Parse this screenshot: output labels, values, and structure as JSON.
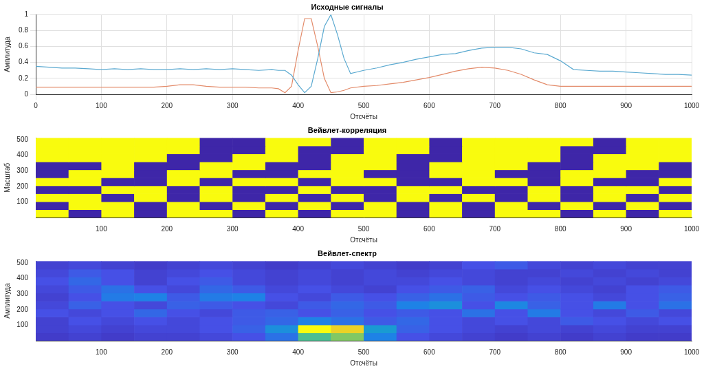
{
  "chart_data": [
    {
      "type": "line",
      "title": "Исходные сигналы",
      "x_label": "Отсчёты",
      "y_label": "Амплитуда",
      "x": [
        0,
        20,
        40,
        60,
        80,
        100,
        120,
        140,
        160,
        180,
        200,
        220,
        240,
        260,
        280,
        300,
        320,
        340,
        360,
        370,
        380,
        390,
        400,
        410,
        420,
        430,
        440,
        450,
        460,
        470,
        480,
        500,
        520,
        540,
        560,
        580,
        600,
        620,
        640,
        660,
        680,
        700,
        720,
        740,
        760,
        780,
        800,
        820,
        840,
        860,
        880,
        900,
        920,
        940,
        960,
        980,
        1000
      ],
      "series": [
        {
          "color": "#5aa9d0",
          "values": [
            0.35,
            0.34,
            0.33,
            0.33,
            0.32,
            0.31,
            0.32,
            0.31,
            0.32,
            0.31,
            0.31,
            0.32,
            0.31,
            0.32,
            0.31,
            0.32,
            0.31,
            0.3,
            0.31,
            0.3,
            0.3,
            0.24,
            0.12,
            0.02,
            0.1,
            0.45,
            0.85,
            1.0,
            0.75,
            0.45,
            0.26,
            0.3,
            0.33,
            0.37,
            0.4,
            0.44,
            0.47,
            0.5,
            0.51,
            0.55,
            0.58,
            0.59,
            0.59,
            0.57,
            0.52,
            0.5,
            0.42,
            0.31,
            0.3,
            0.29,
            0.29,
            0.28,
            0.27,
            0.26,
            0.25,
            0.25,
            0.24
          ]
        },
        {
          "color": "#e38b6a",
          "values": [
            0.09,
            0.09,
            0.09,
            0.09,
            0.09,
            0.09,
            0.09,
            0.09,
            0.09,
            0.09,
            0.1,
            0.12,
            0.12,
            0.1,
            0.09,
            0.09,
            0.09,
            0.08,
            0.08,
            0.07,
            0.02,
            0.1,
            0.55,
            0.95,
            0.95,
            0.6,
            0.2,
            0.02,
            0.03,
            0.05,
            0.08,
            0.1,
            0.11,
            0.13,
            0.15,
            0.18,
            0.21,
            0.25,
            0.29,
            0.32,
            0.34,
            0.33,
            0.3,
            0.25,
            0.18,
            0.12,
            0.1,
            0.1,
            0.1,
            0.1,
            0.1,
            0.1,
            0.1,
            0.1,
            0.1,
            0.1,
            0.1
          ]
        }
      ],
      "xlim": [
        0,
        1000
      ],
      "xticks": [
        0,
        100,
        200,
        300,
        400,
        500,
        600,
        700,
        800,
        900,
        1000
      ],
      "ylim": [
        0,
        1
      ],
      "yticks": [
        0,
        0.2,
        0.4,
        0.6,
        0.8,
        1
      ],
      "grid": true
    },
    {
      "type": "heatmap",
      "title": "Вейвлет-корреляция",
      "x_label": "Отсчёты",
      "y_label": "Масштаб",
      "x": [
        25,
        75,
        125,
        175,
        225,
        275,
        325,
        375,
        425,
        475,
        525,
        575,
        625,
        675,
        725,
        775,
        825,
        875,
        925,
        975
      ],
      "y": [
        25.6,
        76.8,
        128,
        179.2,
        230.4,
        281.6,
        332.8,
        384,
        435.2,
        486.4
      ],
      "cells": [
        [
          1,
          0,
          1,
          0,
          1,
          1,
          0,
          1,
          0,
          1,
          1,
          0,
          1,
          0,
          1,
          1,
          0,
          1,
          0,
          1
        ],
        [
          0,
          1,
          1,
          0,
          1,
          0,
          1,
          0,
          1,
          0,
          1,
          0,
          1,
          0,
          1,
          0,
          1,
          0,
          1,
          0
        ],
        [
          1,
          1,
          0,
          1,
          0,
          1,
          0,
          1,
          0,
          1,
          0,
          1,
          0,
          1,
          0,
          1,
          0,
          1,
          0,
          1
        ],
        [
          0,
          0,
          1,
          1,
          0,
          1,
          0,
          0,
          1,
          0,
          0,
          1,
          1,
          0,
          0,
          1,
          0,
          1,
          1,
          0
        ],
        [
          1,
          1,
          0,
          0,
          1,
          0,
          1,
          1,
          0,
          1,
          1,
          0,
          0,
          1,
          1,
          0,
          1,
          0,
          0,
          1
        ],
        [
          0,
          1,
          1,
          0,
          1,
          1,
          0,
          0,
          1,
          1,
          0,
          0,
          1,
          1,
          0,
          0,
          1,
          1,
          0,
          0
        ],
        [
          0,
          0,
          1,
          0,
          0,
          1,
          1,
          0,
          0,
          1,
          1,
          0,
          1,
          1,
          1,
          0,
          0,
          1,
          1,
          0
        ],
        [
          1,
          1,
          1,
          1,
          0,
          0,
          1,
          1,
          0,
          1,
          1,
          0,
          0,
          1,
          1,
          1,
          0,
          1,
          1,
          1
        ],
        [
          1,
          1,
          1,
          1,
          1,
          0,
          0,
          1,
          0,
          0,
          1,
          1,
          0,
          1,
          1,
          1,
          0,
          0,
          1,
          1
        ],
        [
          1,
          1,
          1,
          1,
          1,
          0,
          0,
          1,
          1,
          0,
          1,
          1,
          0,
          1,
          1,
          1,
          1,
          0,
          1,
          1
        ]
      ],
      "xlim": [
        0,
        1000
      ],
      "xticks": [
        100,
        200,
        300,
        400,
        500,
        600,
        700,
        800,
        900,
        1000
      ],
      "ylim": [
        0,
        512
      ],
      "yticks": [
        100,
        200,
        300,
        400,
        500
      ],
      "grid": false
    },
    {
      "type": "heatmap",
      "title": "Вейвлет-спектр",
      "x_label": "Отсчёты",
      "y_label": "Амплитуда",
      "x": [
        25,
        75,
        125,
        175,
        225,
        275,
        325,
        375,
        425,
        475,
        525,
        575,
        625,
        675,
        725,
        775,
        825,
        875,
        925,
        975
      ],
      "y": [
        25.6,
        76.8,
        128,
        179.2,
        230.4,
        281.6,
        332.8,
        384,
        435.2,
        486.4
      ],
      "cells": [
        [
          0.08,
          0.1,
          0.08,
          0.1,
          0.1,
          0.12,
          0.15,
          0.25,
          0.6,
          0.7,
          0.3,
          0.15,
          0.12,
          0.1,
          0.08,
          0.1,
          0.08,
          0.1,
          0.08,
          0.08
        ],
        [
          0.1,
          0.12,
          0.1,
          0.12,
          0.12,
          0.15,
          0.2,
          0.35,
          1.0,
          0.9,
          0.4,
          0.2,
          0.15,
          0.12,
          0.1,
          0.12,
          0.1,
          0.12,
          0.1,
          0.1
        ],
        [
          0.1,
          0.15,
          0.12,
          0.15,
          0.12,
          0.15,
          0.18,
          0.22,
          0.3,
          0.25,
          0.18,
          0.22,
          0.15,
          0.12,
          0.15,
          0.12,
          0.18,
          0.15,
          0.12,
          0.15
        ],
        [
          0.15,
          0.12,
          0.15,
          0.22,
          0.15,
          0.12,
          0.18,
          0.2,
          0.15,
          0.2,
          0.15,
          0.18,
          0.15,
          0.25,
          0.15,
          0.28,
          0.15,
          0.12,
          0.18,
          0.12
        ],
        [
          0.12,
          0.2,
          0.15,
          0.12,
          0.2,
          0.18,
          0.15,
          0.12,
          0.18,
          0.22,
          0.18,
          0.3,
          0.35,
          0.15,
          0.32,
          0.2,
          0.15,
          0.28,
          0.15,
          0.25
        ],
        [
          0.1,
          0.15,
          0.28,
          0.3,
          0.18,
          0.28,
          0.3,
          0.15,
          0.12,
          0.18,
          0.15,
          0.2,
          0.25,
          0.18,
          0.15,
          0.18,
          0.15,
          0.12,
          0.15,
          0.2
        ],
        [
          0.12,
          0.18,
          0.25,
          0.15,
          0.12,
          0.22,
          0.18,
          0.12,
          0.15,
          0.12,
          0.1,
          0.15,
          0.18,
          0.2,
          0.12,
          0.15,
          0.12,
          0.1,
          0.15,
          0.18
        ],
        [
          0.15,
          0.22,
          0.15,
          0.1,
          0.15,
          0.18,
          0.12,
          0.1,
          0.12,
          0.1,
          0.12,
          0.12,
          0.15,
          0.12,
          0.1,
          0.12,
          0.1,
          0.12,
          0.1,
          0.12
        ],
        [
          0.12,
          0.18,
          0.15,
          0.1,
          0.12,
          0.15,
          0.12,
          0.1,
          0.12,
          0.1,
          0.12,
          0.1,
          0.12,
          0.12,
          0.1,
          0.1,
          0.12,
          0.1,
          0.12,
          0.1
        ],
        [
          0.1,
          0.12,
          0.1,
          0.08,
          0.1,
          0.12,
          0.1,
          0.08,
          0.1,
          0.12,
          0.1,
          0.08,
          0.1,
          0.15,
          0.18,
          0.12,
          0.1,
          0.12,
          0.1,
          0.1
        ]
      ],
      "xlim": [
        0,
        1000
      ],
      "xticks": [
        100,
        200,
        300,
        400,
        500,
        600,
        700,
        800,
        900,
        1000
      ],
      "ylim": [
        0,
        512
      ],
      "yticks": [
        100,
        200,
        300,
        400,
        500
      ],
      "grid": false
    }
  ]
}
